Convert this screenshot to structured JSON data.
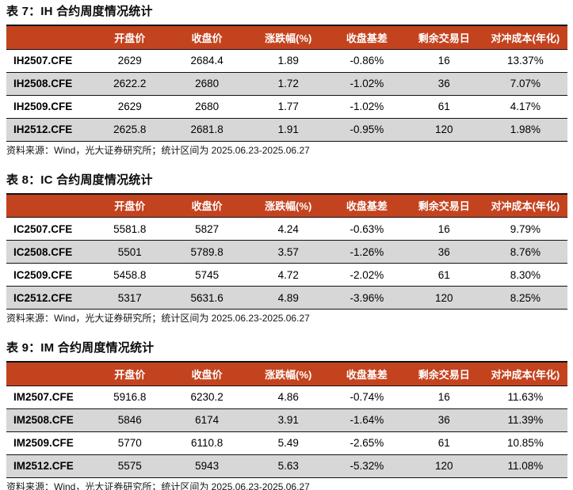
{
  "colors": {
    "header_bg": "#c4431f",
    "header_text": "#ffffff",
    "alt_row_bg": "#d7d7d7",
    "border": "#111111",
    "text": "#000000"
  },
  "tables": [
    {
      "title": "表 7：IH 合约周度情况统计",
      "columns": [
        "",
        "开盘价",
        "收盘价",
        "涨跌幅(%)",
        "收盘基差",
        "剩余交易日",
        "对冲成本(年化)"
      ],
      "rows": [
        [
          "IH2507.CFE",
          "2629",
          "2684.4",
          "1.89",
          "-0.86%",
          "16",
          "13.37%"
        ],
        [
          "IH2508.CFE",
          "2622.2",
          "2680",
          "1.72",
          "-1.02%",
          "36",
          "7.07%"
        ],
        [
          "IH2509.CFE",
          "2629",
          "2680",
          "1.77",
          "-1.02%",
          "61",
          "4.17%"
        ],
        [
          "IH2512.CFE",
          "2625.8",
          "2681.8",
          "1.91",
          "-0.95%",
          "120",
          "1.98%"
        ]
      ],
      "source": "资料来源：Wind，光大证券研究所；统计区间为 2025.06.23-2025.06.27"
    },
    {
      "title": "表 8：IC 合约周度情况统计",
      "columns": [
        "",
        "开盘价",
        "收盘价",
        "涨跌幅(%)",
        "收盘基差",
        "剩余交易日",
        "对冲成本(年化)"
      ],
      "rows": [
        [
          "IC2507.CFE",
          "5581.8",
          "5827",
          "4.24",
          "-0.63%",
          "16",
          "9.79%"
        ],
        [
          "IC2508.CFE",
          "5501",
          "5789.8",
          "3.57",
          "-1.26%",
          "36",
          "8.76%"
        ],
        [
          "IC2509.CFE",
          "5458.8",
          "5745",
          "4.72",
          "-2.02%",
          "61",
          "8.30%"
        ],
        [
          "IC2512.CFE",
          "5317",
          "5631.6",
          "4.89",
          "-3.96%",
          "120",
          "8.25%"
        ]
      ],
      "source": "资料来源：Wind，光大证券研究所；统计区间为 2025.06.23-2025.06.27"
    },
    {
      "title": "表 9：IM 合约周度情况统计",
      "columns": [
        "",
        "开盘价",
        "收盘价",
        "涨跌幅(%)",
        "收盘基差",
        "剩余交易日",
        "对冲成本(年化)"
      ],
      "rows": [
        [
          "IM2507.CFE",
          "5916.8",
          "6230.2",
          "4.86",
          "-0.74%",
          "16",
          "11.63%"
        ],
        [
          "IM2508.CFE",
          "5846",
          "6174",
          "3.91",
          "-1.64%",
          "36",
          "11.39%"
        ],
        [
          "IM2509.CFE",
          "5770",
          "6110.8",
          "5.49",
          "-2.65%",
          "61",
          "10.85%"
        ],
        [
          "IM2512.CFE",
          "5575",
          "5943",
          "5.63",
          "-5.32%",
          "120",
          "11.08%"
        ]
      ],
      "source": "资料来源：Wind，光大证券研究所；统计区间为 2025.06.23-2025.06.27"
    }
  ]
}
